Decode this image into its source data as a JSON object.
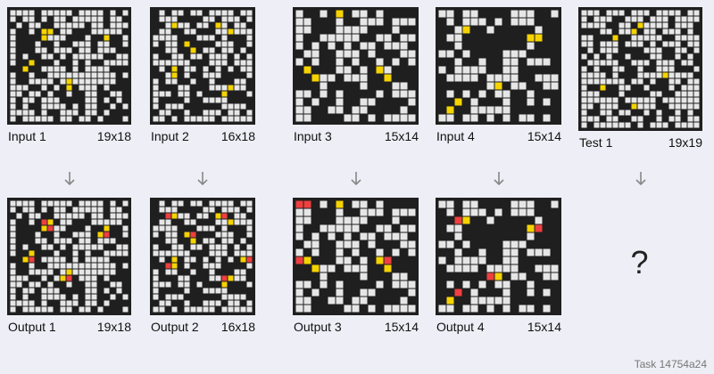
{
  "palette": {
    "0": "#1f1f1f",
    "1": "#e6e6e6",
    "2": "#f5d300",
    "3": "#ef3f3f"
  },
  "pairs": [
    {
      "input": {
        "label": "Input 1",
        "size": "19x18",
        "rows": [
          "1111011111011110101",
          "1011010110111110110",
          "0101100111110110111",
          "1001022011000111110",
          "1000021110001002001",
          "1000100100111011001",
          "1000110111011011100",
          "1010011010111110011",
          "1002000100101001111",
          "0020011110101111000",
          "1001001111111111101",
          "1001111012111111100",
          "1110010102011101000",
          "1101101001001100110",
          "1011011100001101010",
          "1010011110101100101",
          "1111010011101101000",
          "1011111011011010001"
        ]
      },
      "output": {
        "label": "Output 1",
        "size": "19x18",
        "rows": [
          "1111011111011110101",
          "1011010110111110110",
          "0101100111110110111",
          "1001032011000111110",
          "1000023110001002001",
          "1000100100111023001",
          "1000110111011011100",
          "1010011010111110011",
          "1002000100101001111",
          "0023011110101111000",
          "1001001111111111101",
          "1001111012111111100",
          "1110010123011101000",
          "1101101001001100110",
          "1011011100001101010",
          "1010011110101100101",
          "1111010011101101000",
          "1011111011011010001"
        ]
      }
    },
    {
      "input": {
        "label": "Input 2",
        "size": "16x18",
        "rows": [
          "0101101101111011",
          "0111000011011101",
          "0012110110210110",
          "0110011000112111",
          "1111000111010001",
          "1011020000111001",
          "0011002011011010",
          "1001101101110101",
          "1111110001110111",
          "0102011010101011",
          "0012010011100001",
          "1011001001000110",
          "1000110001112110",
          "1110110100020001",
          "1000010011110000",
          "1011100000011110",
          "0110010011101101",
          "1101011111011111"
        ]
      },
      "output": {
        "label": "Output 2",
        "size": "16x18",
        "rows": [
          "0101101101111011",
          "0111000011011101",
          "0032110110230110",
          "0110011000112111",
          "1111000111010001",
          "1011023000111001",
          "0011002011011010",
          "1001101101110101",
          "1111110001110111",
          "0102011010101023",
          "0032010011100001",
          "1011001001000110",
          "1000110001132110",
          "1110110100020001",
          "1000010011110000",
          "1011100000011110",
          "0110010011101101",
          "1101011111011111"
        ]
      }
    },
    {
      "input": {
        "label": "Input 3",
        "size": "15x14",
        "rows": [
          "100102011010000",
          "110001001110111",
          "110001111000100",
          "100111110011011",
          "101010101101110",
          "011001110100011",
          "101001010010101",
          "020001101021000",
          "002110111002000",
          "000100001000110",
          "110101000010111",
          "101001001100001",
          "110011011000010",
          "110000110101111"
        ]
      },
      "output": {
        "label": "Output 3",
        "size": "15x14",
        "rows": [
          "330102011010000",
          "110001001110111",
          "110001111000100",
          "100111110011011",
          "101010101101110",
          "011001110100011",
          "101001010010101",
          "320001101023000",
          "002110111002000",
          "000100001000110",
          "110101000010111",
          "101001001100001",
          "110011011000010",
          "110000110101111"
        ]
      }
    },
    {
      "input": {
        "label": "Input 4",
        "size": "15x14",
        "rows": [
          "110110000111001",
          "010111010111000",
          "001200100000100",
          "011000000002200",
          "001000000001000",
          "110100001110000",
          "001001001101110",
          "101111001100000",
          "011110111100111",
          "000000120110011",
          "010101011001000",
          "002010001001010",
          "020011111000000",
          "110110101011010"
        ]
      },
      "output": {
        "label": "Output 4",
        "size": "15x14",
        "rows": [
          "110110000111001",
          "010111010111000",
          "003200100000100",
          "011000000002300",
          "001000000001000",
          "110100001110000",
          "001001001101110",
          "101111001100000",
          "011110111100111",
          "000000320110011",
          "010101011001000",
          "003010001001010",
          "020011111000000",
          "110110101011010"
        ]
      }
    }
  ],
  "test": {
    "label": "Test 1",
    "size": "19x19",
    "rows": [
      "1110111011101111011",
      "1011100111011101111",
      "1111001102111101110",
      "0001101120110111010",
      "1100020011111001111",
      "1101110111010111011",
      "0101110000111001101",
      "1010100100011001010",
      "0111110011101110110",
      "1010011001001110001",
      "1111010001111211110",
      "1111111011010011011",
      "1002001100100010111",
      "1110001000011001111",
      "1111110111110111111",
      "1101110021110011111",
      "1001101100101001010",
      "1110110011001011011",
      "1011111101011101111"
    ],
    "unknown_output": "?"
  },
  "arrow_glyph": "↓",
  "task_id": "Task 14754a24"
}
